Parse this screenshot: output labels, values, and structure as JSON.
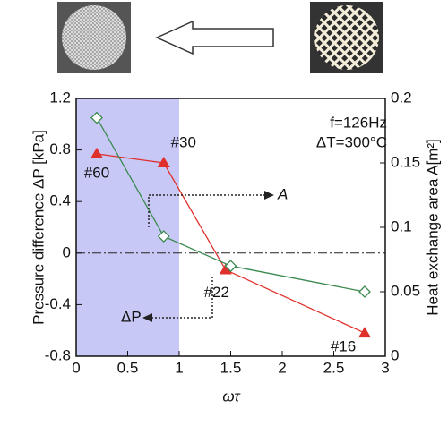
{
  "chart_data": {
    "type": "line",
    "annotations": [
      "f=126Hz",
      "ΔT=300°C"
    ],
    "x_label": "ωτ",
    "y_label": "Pressure difference ΔP [kPa]",
    "y2_label": "Heat exchange area A[m²]",
    "xlim": [
      0,
      3
    ],
    "xticks": [
      0,
      0.5,
      1,
      1.5,
      2,
      2.5,
      3
    ],
    "ylim": [
      -0.8,
      1.2
    ],
    "yticks": [
      -0.8,
      -0.4,
      0,
      0.4,
      0.8,
      1.2
    ],
    "y2lim": [
      0,
      0.2
    ],
    "y2ticks": [
      0,
      0.05,
      0.1,
      0.15,
      0.2
    ],
    "shaded_xrange": [
      0,
      1
    ],
    "shade_color": "#c8c8f6",
    "series": [
      {
        "name": "ΔP",
        "color": "#e0302c",
        "marker": "triangle",
        "x": [
          0.2,
          0.85,
          1.45,
          2.8
        ],
        "values": [
          0.77,
          0.7,
          -0.13,
          -0.62
        ],
        "point_labels": [
          "#60",
          "#30",
          "#22",
          "#16"
        ]
      },
      {
        "name": "A",
        "color": "#3a8a50",
        "marker": "diamond",
        "axis": "y2",
        "x": [
          0.2,
          0.85,
          1.5,
          2.8
        ],
        "values": [
          0.185,
          0.093,
          0.07,
          0.05
        ]
      }
    ]
  }
}
